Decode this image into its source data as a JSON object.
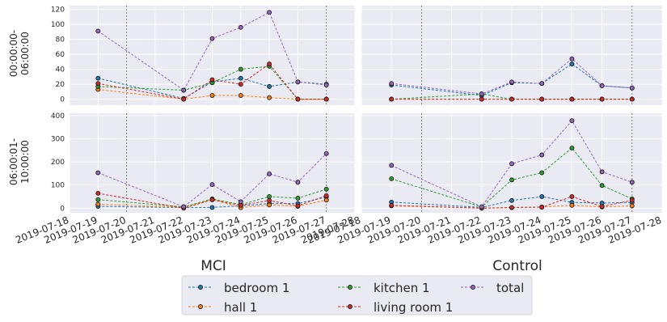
{
  "figure": {
    "facet_titles": [
      "MCI",
      "Control"
    ],
    "row_labels": [
      [
        "00:00:00-",
        "06:00:00"
      ],
      [
        "06:00:01-",
        "10:00:00"
      ]
    ]
  },
  "legend": {
    "placement": "bottom-center",
    "entries": [
      {
        "label": "bedroom 1",
        "color": "#1f77b4"
      },
      {
        "label": "hall 1",
        "color": "#ff7f0e"
      },
      {
        "label": "kitchen 1",
        "color": "#2ca02c"
      },
      {
        "label": "living room 1",
        "color": "#d62728"
      },
      {
        "label": "total",
        "color": "#9467bd"
      }
    ]
  },
  "chart_data": {
    "type": "line",
    "grid": true,
    "x_ticks": [
      "2019-07-18",
      "2019-07-19",
      "2019-07-20",
      "2019-07-21",
      "2019-07-22",
      "2019-07-23",
      "2019-07-24",
      "2019-07-25",
      "2019-07-26",
      "2019-07-27",
      "2019-07-28"
    ],
    "xlim": [
      "2019-07-18",
      "2019-07-28"
    ],
    "panels": [
      {
        "row": 0,
        "col": 0,
        "facet": "MCI",
        "time_range": "00:00:00-06:00:00",
        "ylim": [
          -8,
          125
        ],
        "yticks": [
          0,
          20,
          40,
          60,
          80,
          100,
          120
        ],
        "vlines": [
          "2019-07-20",
          "2019-07-27"
        ],
        "x": [
          "2019-07-19",
          "2019-07-22",
          "2019-07-23",
          "2019-07-24",
          "2019-07-25",
          "2019-07-26",
          "2019-07-27"
        ],
        "series": [
          {
            "name": "bedroom 1",
            "values": [
              28,
              1,
              23,
              28,
              17,
              23,
              20
            ]
          },
          {
            "name": "hall 1",
            "values": [
              13,
              0,
              5,
              5,
              2,
              0,
              0
            ]
          },
          {
            "name": "kitchen 1",
            "values": [
              17,
              12,
              22,
              40,
              44,
              0,
              0
            ]
          },
          {
            "name": "living room 1",
            "values": [
              21,
              0,
              26,
              20,
              47,
              0,
              0
            ]
          },
          {
            "name": "total",
            "values": [
              91,
              12,
              81,
              96,
              116,
              23,
              19
            ]
          }
        ]
      },
      {
        "row": 0,
        "col": 1,
        "facet": "Control",
        "time_range": "00:00:00-06:00:00",
        "ylim": [
          -8,
          125
        ],
        "yticks": [
          0,
          20,
          40,
          60,
          80,
          100,
          120
        ],
        "vlines": [
          "2019-07-20",
          "2019-07-27"
        ],
        "x": [
          "2019-07-19",
          "2019-07-22",
          "2019-07-23",
          "2019-07-24",
          "2019-07-25",
          "2019-07-26",
          "2019-07-27"
        ],
        "series": [
          {
            "name": "bedroom 1",
            "values": [
              19,
              5,
              22,
              21,
              47,
              18,
              15
            ]
          },
          {
            "name": "hall 1",
            "values": [
              0,
              0,
              0,
              0,
              0,
              0,
              0
            ]
          },
          {
            "name": "kitchen 1",
            "values": [
              0,
              7,
              0,
              0,
              0,
              0,
              0
            ]
          },
          {
            "name": "living room 1",
            "values": [
              0,
              0,
              0,
              0,
              0,
              0,
              0
            ]
          },
          {
            "name": "total",
            "values": [
              21,
              7,
              23,
              21,
              54,
              18,
              15
            ]
          }
        ]
      },
      {
        "row": 1,
        "col": 0,
        "facet": "MCI",
        "time_range": "06:00:01-10:00:00",
        "ylim": [
          -20,
          410
        ],
        "yticks": [
          0,
          100,
          200,
          300,
          400
        ],
        "vlines": [
          "2019-07-20",
          "2019-07-27"
        ],
        "x": [
          "2019-07-19",
          "2019-07-22",
          "2019-07-23",
          "2019-07-24",
          "2019-07-25",
          "2019-07-26",
          "2019-07-27"
        ],
        "series": [
          {
            "name": "bedroom 1",
            "values": [
              8,
              2,
              3,
              10,
              20,
              20,
              48
            ]
          },
          {
            "name": "hall 1",
            "values": [
              17,
              3,
              38,
              2,
              14,
              8,
              35
            ]
          },
          {
            "name": "kitchen 1",
            "values": [
              37,
              5,
              40,
              15,
              50,
              43,
              82
            ]
          },
          {
            "name": "living room 1",
            "values": [
              64,
              0,
              36,
              12,
              33,
              10,
              54
            ]
          },
          {
            "name": "total",
            "values": [
              153,
              6,
              102,
              28,
              148,
              112,
              236
            ]
          }
        ]
      },
      {
        "row": 1,
        "col": 1,
        "facet": "Control",
        "time_range": "06:00:01-10:00:00",
        "ylim": [
          -20,
          410
        ],
        "yticks": [
          0,
          100,
          200,
          300,
          400
        ],
        "vlines": [
          "2019-07-20",
          "2019-07-27"
        ],
        "x": [
          "2019-07-19",
          "2019-07-22",
          "2019-07-23",
          "2019-07-24",
          "2019-07-25",
          "2019-07-26",
          "2019-07-27"
        ],
        "series": [
          {
            "name": "bedroom 1",
            "values": [
              26,
              3,
              33,
              50,
              25,
              22,
              25
            ]
          },
          {
            "name": "hall 1",
            "values": [
              10,
              0,
              2,
              5,
              12,
              5,
              10
            ]
          },
          {
            "name": "kitchen 1",
            "values": [
              127,
              5,
              122,
              153,
              260,
              98,
              40
            ]
          },
          {
            "name": "living room 1",
            "values": [
              12,
              0,
              3,
              4,
              50,
              7,
              34
            ]
          },
          {
            "name": "total",
            "values": [
              185,
              6,
              192,
              230,
              378,
              157,
              112
            ]
          }
        ]
      }
    ]
  }
}
